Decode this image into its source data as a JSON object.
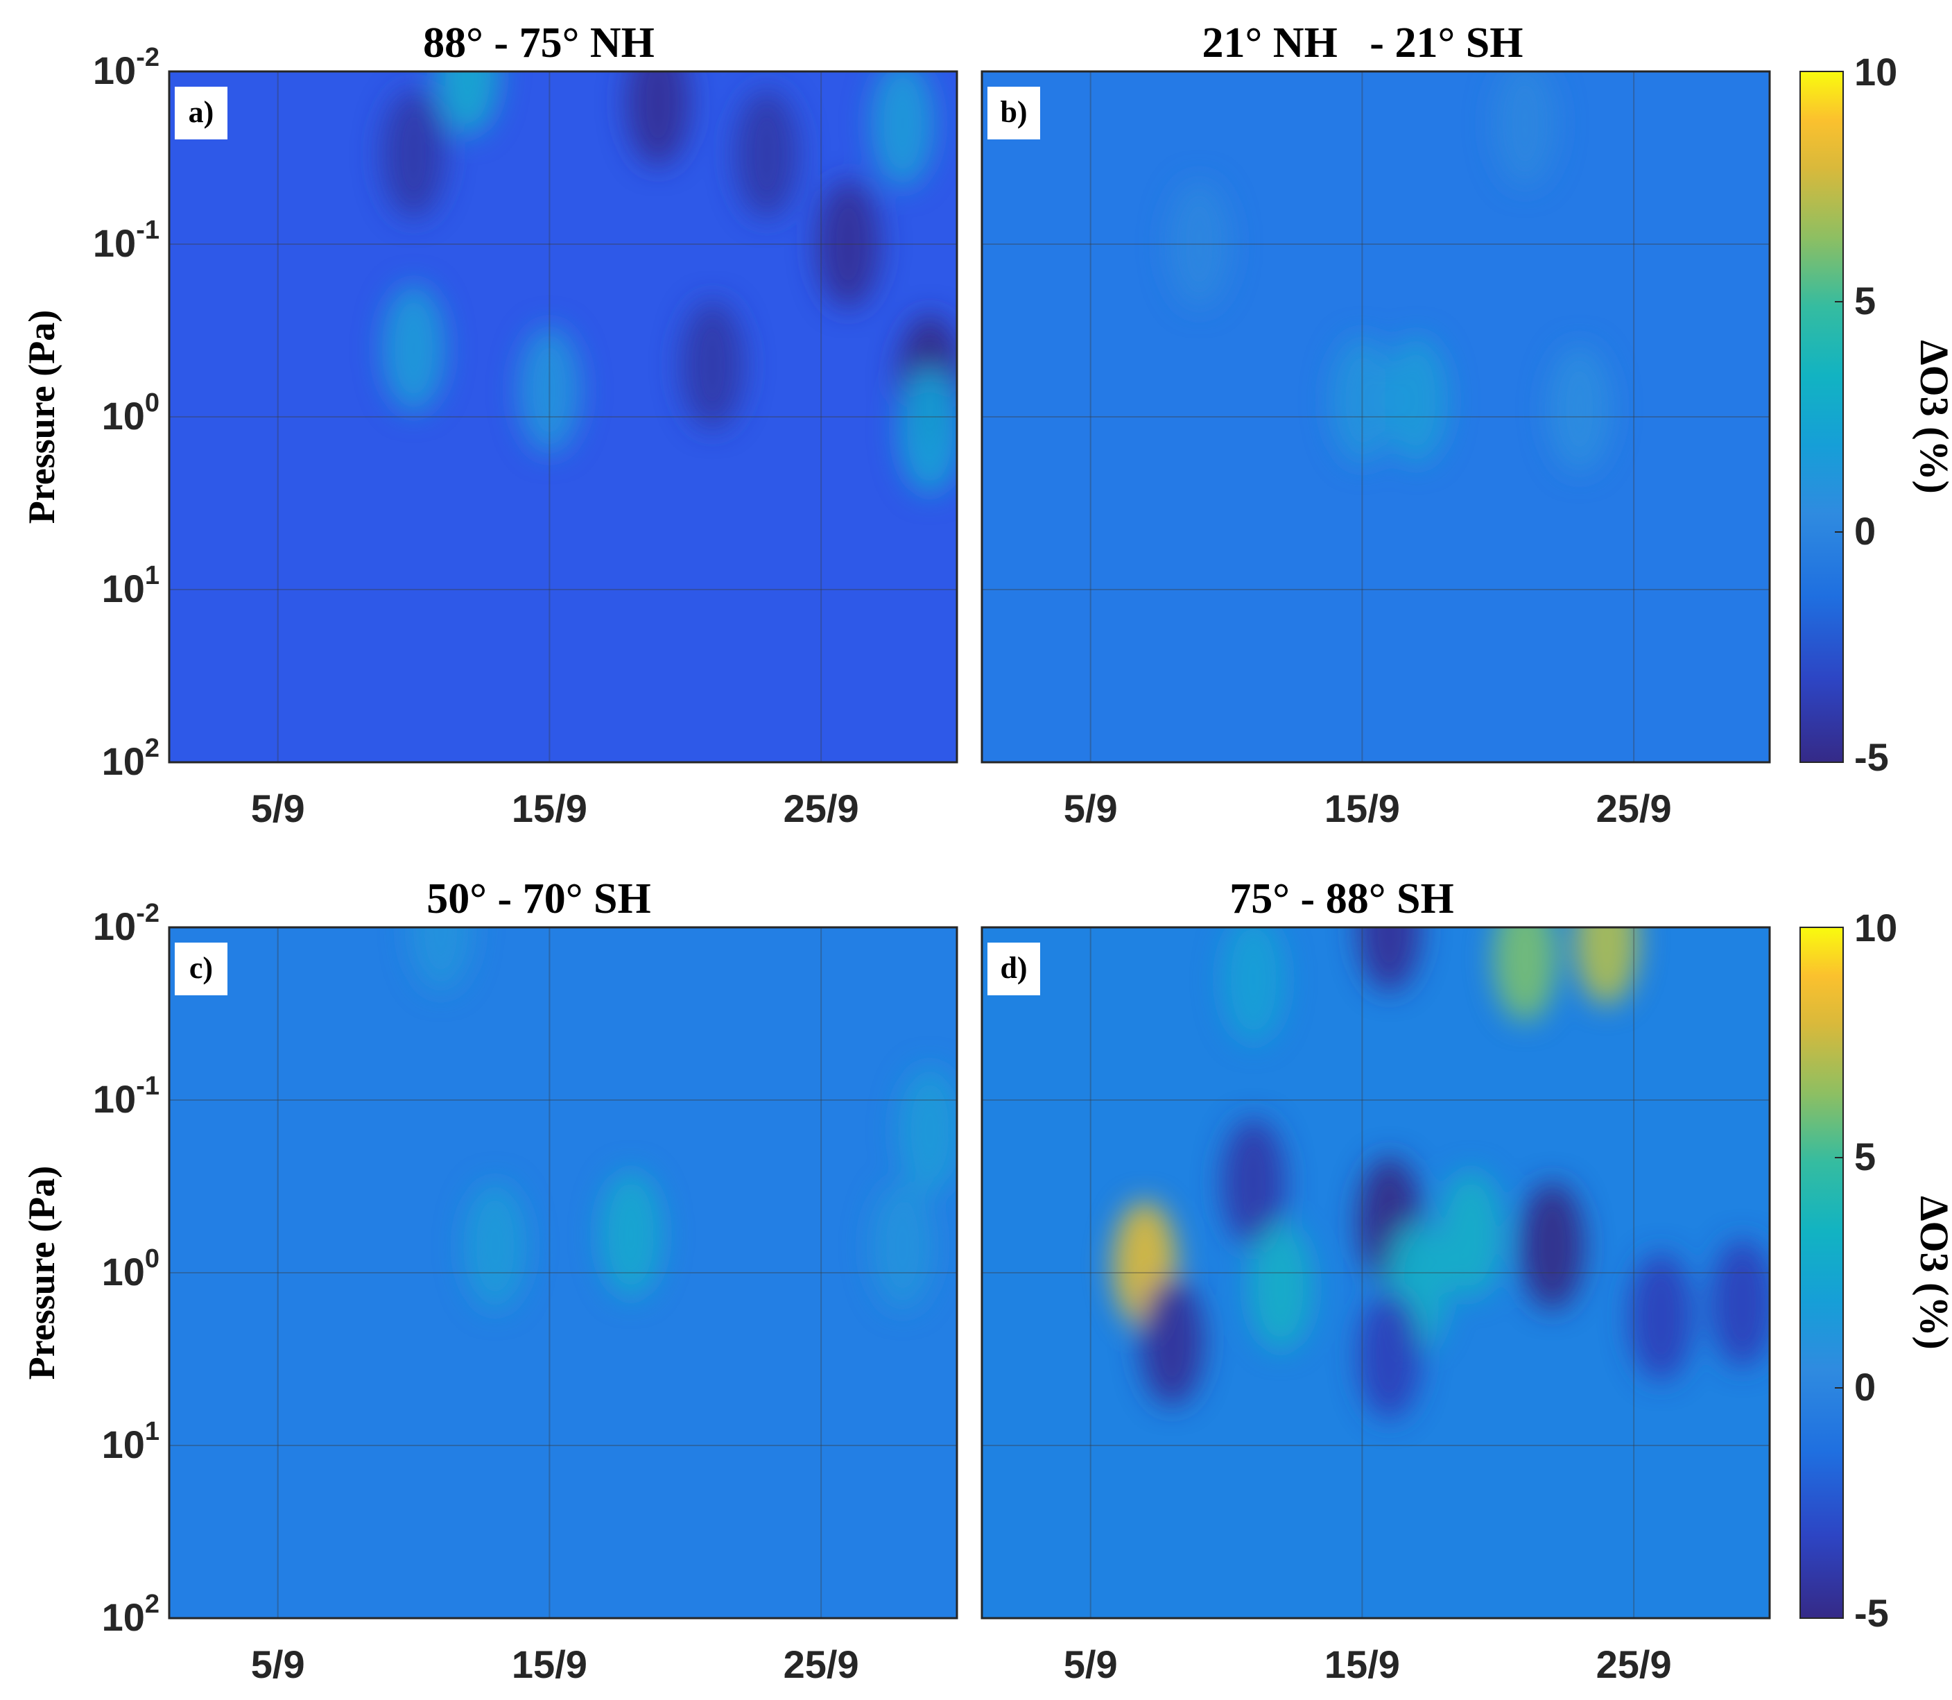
{
  "chart_data": [
    {
      "type": "heatmap",
      "panel_label": "a)",
      "title": "88° - 75° NH",
      "ylabel": "Pressure (Pa)",
      "y_scale": "log",
      "y_reversed": true,
      "ylim": [
        0.01,
        100
      ],
      "y_ticks": [
        {
          "base": "10",
          "exp": "-2"
        },
        {
          "base": "10",
          "exp": "-1"
        },
        {
          "base": "10",
          "exp": "0"
        },
        {
          "base": "10",
          "exp": "1"
        },
        {
          "base": "10",
          "exp": "2"
        }
      ],
      "x_ticks": [
        "5/9",
        "15/9",
        "25/9"
      ],
      "xlim": [
        "1/9",
        "30/9"
      ],
      "grid": true,
      "colorbar": {
        "label": "ΔO3 (%)",
        "range": [
          -5,
          10
        ],
        "ticks": [
          "10",
          "5",
          "0",
          "-5"
        ],
        "colormap": "parula"
      },
      "dominant_value": -2,
      "features": [
        {
          "date": 10,
          "pressure": 0.03,
          "value": -4
        },
        {
          "date": 19,
          "pressure": 0.015,
          "value": -4.5
        },
        {
          "date": 23,
          "pressure": 0.03,
          "value": -4
        },
        {
          "date": 26,
          "pressure": 0.1,
          "value": -4.5
        },
        {
          "date": 29,
          "pressure": 0.6,
          "value": -5
        },
        {
          "date": 21,
          "pressure": 0.5,
          "value": -4
        },
        {
          "date": 10,
          "pressure": 0.4,
          "value": 1.5
        },
        {
          "date": 15,
          "pressure": 0.7,
          "value": 1
        },
        {
          "date": 29,
          "pressure": 1.2,
          "value": 2
        },
        {
          "date": 12,
          "pressure": 0.01,
          "value": 2.5
        },
        {
          "date": 28,
          "pressure": 0.02,
          "value": 1.5
        }
      ]
    },
    {
      "type": "heatmap",
      "panel_label": "b)",
      "title": "21° NH   - 21° SH",
      "y_scale": "log",
      "y_reversed": true,
      "ylim": [
        0.01,
        100
      ],
      "x_ticks": [
        "5/9",
        "15/9",
        "25/9"
      ],
      "xlim": [
        "1/9",
        "30/9"
      ],
      "grid": true,
      "dominant_value": -1,
      "features": [
        {
          "date": 15,
          "pressure": 0.8,
          "value": 1
        },
        {
          "date": 17,
          "pressure": 0.8,
          "value": 1.5
        },
        {
          "date": 23,
          "pressure": 0.9,
          "value": 0.5
        },
        {
          "date": 9,
          "pressure": 0.1,
          "value": 0
        },
        {
          "date": 21,
          "pressure": 0.02,
          "value": 0
        }
      ]
    },
    {
      "type": "heatmap",
      "panel_label": "c)",
      "title": "50° - 70° SH",
      "ylabel": "Pressure (Pa)",
      "y_scale": "log",
      "y_reversed": true,
      "ylim": [
        0.01,
        100
      ],
      "y_ticks": [
        {
          "base": "10",
          "exp": "-2"
        },
        {
          "base": "10",
          "exp": "-1"
        },
        {
          "base": "10",
          "exp": "0"
        },
        {
          "base": "10",
          "exp": "1"
        },
        {
          "base": "10",
          "exp": "2"
        }
      ],
      "x_ticks": [
        "5/9",
        "15/9",
        "25/9"
      ],
      "xlim": [
        "1/9",
        "30/9"
      ],
      "grid": true,
      "colorbar": {
        "label": "ΔO3 (%)",
        "range": [
          -5,
          10
        ],
        "ticks": [
          "10",
          "5",
          "0",
          "-5"
        ],
        "colormap": "parula"
      },
      "dominant_value": -1,
      "features": [
        {
          "date": 18,
          "pressure": 0.6,
          "value": 2.5
        },
        {
          "date": 13,
          "pressure": 0.7,
          "value": 1.5
        },
        {
          "date": 29,
          "pressure": 0.15,
          "value": 1.5
        },
        {
          "date": 11,
          "pressure": 0.01,
          "value": 1
        },
        {
          "date": 28,
          "pressure": 0.7,
          "value": 1
        }
      ]
    },
    {
      "type": "heatmap",
      "panel_label": "d)",
      "title": "75° - 88° SH",
      "y_scale": "log",
      "y_reversed": true,
      "ylim": [
        0.01,
        100
      ],
      "x_ticks": [
        "5/9",
        "15/9",
        "25/9"
      ],
      "xlim": [
        "1/9",
        "30/9"
      ],
      "grid": true,
      "colorbar": {
        "label": "ΔO3 (%)",
        "range": [
          -5,
          10
        ],
        "ticks": [
          "10",
          "5",
          "0",
          "-5"
        ],
        "colormap": "parula"
      },
      "dominant_value": -1,
      "features": [
        {
          "date": 7,
          "pressure": 0.9,
          "value": 8
        },
        {
          "date": 21,
          "pressure": 0.015,
          "value": 6
        },
        {
          "date": 24,
          "pressure": 0.012,
          "value": 7
        },
        {
          "date": 16,
          "pressure": 0.01,
          "value": -4.5
        },
        {
          "date": 16,
          "pressure": 0.5,
          "value": -5
        },
        {
          "date": 22,
          "pressure": 0.7,
          "value": -5
        },
        {
          "date": 11,
          "pressure": 0.3,
          "value": -4
        },
        {
          "date": 8,
          "pressure": 2.5,
          "value": -4.5
        },
        {
          "date": 17,
          "pressure": 1.2,
          "value": 3
        },
        {
          "date": 19,
          "pressure": 0.6,
          "value": 3
        },
        {
          "date": 12,
          "pressure": 1.2,
          "value": 3
        },
        {
          "date": 11,
          "pressure": 0.02,
          "value": 2
        },
        {
          "date": 26,
          "pressure": 1.8,
          "value": -3.5
        },
        {
          "date": 29,
          "pressure": 1.5,
          "value": -3.5
        },
        {
          "date": 16,
          "pressure": 3,
          "value": -3.5
        }
      ]
    }
  ]
}
